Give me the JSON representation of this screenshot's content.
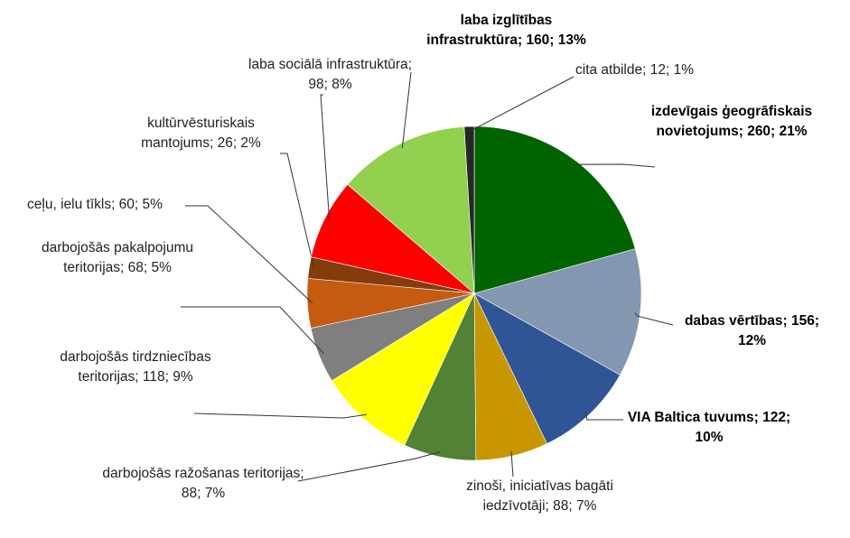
{
  "chart_data": {
    "type": "pie",
    "values": [
      260,
      156,
      122,
      88,
      88,
      118,
      68,
      60,
      26,
      98,
      160,
      12
    ],
    "value_labels": [
      "izdevīgais ģeogrāfiskais novietojums; 260; 21%",
      "dabas vērtības; 156; 12%",
      "VIA Baltica tuvums; 122; 10%",
      "zinoši, iniciatīvas bagāti iedzīvotāji; 88; 7%",
      "darbojošās ražošanas teritorijas; 88; 7%",
      "darbojošās tirdzniecības teritorijas; 118; 9%",
      "darbojošās pakalpojumu teritorijas; 68; 5%",
      "ceļu, ielu tīkls; 60; 5%",
      "kultūrvēsturiskais mantojums; 26; 2%",
      "laba sociālā infrastruktūra; 98; 8%",
      "laba izglītības infrastruktūra; 160; 13%",
      "cita atbilde; 12; 1%"
    ],
    "colors": [
      "#006400",
      "#8497b0",
      "#2f5597",
      "#c89600",
      "#548235",
      "#ffff00",
      "#7f7f7f",
      "#c55a11",
      "#843c0c",
      "#ff0000",
      "#92d050",
      "#262626"
    ],
    "bold_labels": [
      true,
      true,
      true,
      false,
      false,
      false,
      false,
      false,
      false,
      false,
      true,
      false
    ]
  }
}
